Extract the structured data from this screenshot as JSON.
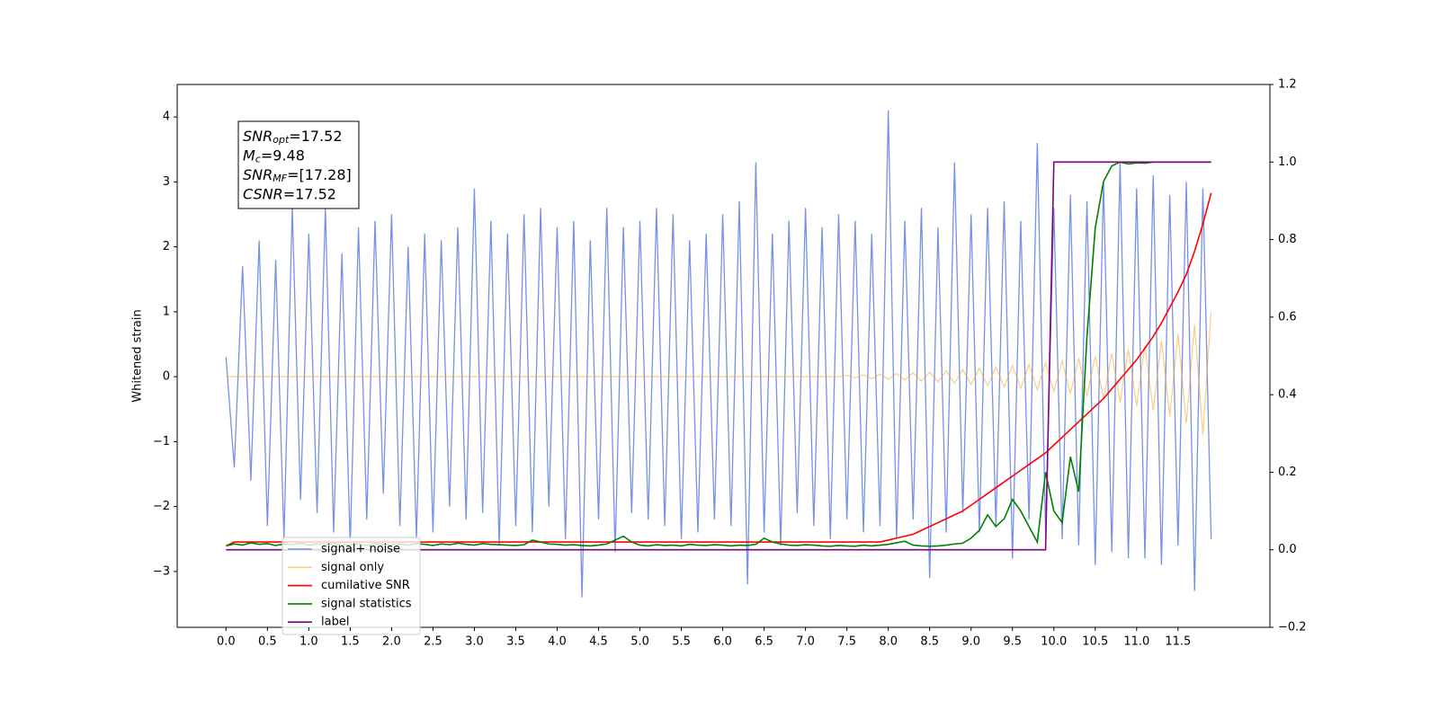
{
  "chart_data": {
    "type": "line",
    "ylabel": "Whitened strain",
    "annotations": [
      {
        "symbol": "SNR",
        "sub": "opt",
        "text": "=17.52"
      },
      {
        "symbol": "M",
        "sub": "c",
        "text": "=9.48"
      },
      {
        "symbol": "SNR",
        "sub": "MF",
        "text": "=[17.28]"
      },
      {
        "symbol": "CSNR",
        "text": "=17.52"
      }
    ],
    "legend": "lower left",
    "grid": false,
    "xlim": [
      -0.59,
      12.61
    ],
    "ylim": [
      -3.86,
      4.5
    ],
    "y2lim": [
      -0.2,
      1.2
    ],
    "xticks": [
      {
        "value": 0,
        "label": "0.0"
      },
      0.5,
      {
        "value": 1,
        "label": "1.0"
      },
      1.5,
      {
        "value": 2,
        "label": "2.0"
      },
      2.5,
      {
        "value": 3,
        "label": "3.0"
      },
      3.5,
      {
        "value": 4,
        "label": "4.0"
      },
      4.5,
      {
        "value": 5,
        "label": "5.0"
      },
      5.5,
      {
        "value": 6,
        "label": "6.0"
      },
      6.5,
      {
        "value": 7,
        "label": "7.0"
      },
      7.5,
      {
        "value": 8,
        "label": "8.0"
      },
      8.5,
      {
        "value": 9,
        "label": "9.0"
      },
      9.5,
      {
        "value": 10,
        "label": "10.0"
      },
      10.5,
      {
        "value": 11,
        "label": "11.0"
      },
      11.5
    ],
    "yticks": [
      {
        "value": -3,
        "label": "−3"
      },
      {
        "value": -2,
        "label": "−2"
      },
      {
        "value": -1,
        "label": "−1"
      },
      0,
      1,
      2,
      3,
      4
    ],
    "y2ticks": [
      {
        "value": -0.2,
        "label": "−0.2"
      },
      {
        "value": 0,
        "label": "0.0"
      },
      0.2,
      0.4,
      0.6,
      0.8,
      {
        "value": 1,
        "label": "1.0"
      },
      1.2
    ],
    "x": [
      0,
      0.1,
      0.2,
      0.3,
      0.4,
      0.5,
      0.6,
      0.7,
      0.8,
      0.9,
      1,
      1.1,
      1.2,
      1.3,
      1.4,
      1.5,
      1.6,
      1.7,
      1.8,
      1.9,
      2,
      2.1,
      2.2,
      2.3,
      2.4,
      2.5,
      2.6,
      2.7,
      2.8,
      2.9,
      3,
      3.1,
      3.2,
      3.3,
      3.4,
      3.5,
      3.6,
      3.7,
      3.8,
      3.9,
      4,
      4.1,
      4.2,
      4.3,
      4.4,
      4.5,
      4.6,
      4.7,
      4.8,
      4.9,
      5,
      5.1,
      5.2,
      5.3,
      5.4,
      5.5,
      5.6,
      5.7,
      5.8,
      5.9,
      6,
      6.1,
      6.2,
      6.3,
      6.4,
      6.5,
      6.6,
      6.7,
      6.8,
      6.9,
      7,
      7.1,
      7.2,
      7.3,
      7.4,
      7.5,
      7.6,
      7.7,
      7.8,
      7.9,
      8,
      8.1,
      8.2,
      8.3,
      8.4,
      8.5,
      8.6,
      8.7,
      8.8,
      8.9,
      9,
      9.1,
      9.2,
      9.3,
      9.4,
      9.5,
      9.6,
      9.7,
      9.8,
      9.9,
      10,
      10.1,
      10.2,
      10.3,
      10.4,
      10.5,
      10.6,
      10.7,
      10.8,
      10.9,
      11,
      11.1,
      11.2,
      11.3,
      11.4,
      11.5,
      11.6,
      11.7,
      11.8,
      11.9
    ],
    "series": [
      {
        "name": "signal+ noise",
        "color": "#6f8be6",
        "values": [
          0.3,
          -1.4,
          1.7,
          -1.6,
          2.1,
          -2.3,
          1.8,
          -2.5,
          2.6,
          -1.9,
          2.2,
          -2.1,
          2.6,
          -2.4,
          1.9,
          -2.6,
          2.3,
          -2.2,
          2.4,
          -1.8,
          2.5,
          -2.3,
          2.0,
          -2.5,
          2.2,
          -2.4,
          2.1,
          -2.0,
          2.3,
          -2.2,
          2.9,
          -2.1,
          2.4,
          -2.6,
          2.2,
          -2.3,
          2.5,
          -2.4,
          2.6,
          -2.0,
          2.3,
          -2.5,
          2.4,
          -3.4,
          2.1,
          -2.2,
          2.6,
          -2.7,
          2.3,
          -2.1,
          2.4,
          -2.2,
          2.6,
          -2.3,
          2.5,
          -2.5,
          2.1,
          -2.4,
          2.2,
          -2.2,
          2.5,
          -2.3,
          2.7,
          -3.2,
          3.3,
          -2.4,
          2.2,
          -2.6,
          2.4,
          -2.1,
          2.6,
          -2.3,
          2.3,
          -2.5,
          2.5,
          -2.2,
          2.4,
          -2.4,
          2.2,
          -2.3,
          4.1,
          -2.5,
          2.4,
          -2.2,
          2.6,
          -3.1,
          2.3,
          -2.4,
          3.3,
          -2.1,
          2.5,
          -2.4,
          2.6,
          -2.3,
          2.7,
          -2.8,
          2.4,
          -2.2,
          3.6,
          -2.4,
          2.6,
          -2.5,
          2.8,
          -2.6,
          2.7,
          -2.9,
          3.0,
          -2.7,
          3.3,
          -2.8,
          2.9,
          -2.8,
          3.1,
          -2.9,
          2.8,
          -2.6,
          3.0,
          -3.3,
          2.9,
          -2.5
        ]
      },
      {
        "name": "signal only",
        "color": "#f5a623",
        "values": [
          0,
          0,
          0,
          0,
          0,
          0,
          0,
          0,
          0,
          0,
          0,
          0,
          0,
          0,
          0,
          0,
          0,
          0,
          0,
          0,
          0,
          0,
          0,
          0,
          0,
          0,
          0,
          0,
          0,
          0,
          0,
          0,
          0,
          0,
          0,
          0,
          0,
          0,
          0,
          0,
          0,
          0,
          0,
          0,
          0,
          0,
          0,
          0,
          0,
          0,
          0,
          0,
          0,
          0,
          0,
          0,
          0,
          0,
          0,
          0,
          0,
          0,
          0,
          0,
          0,
          0,
          0,
          0,
          0,
          0,
          0,
          0,
          0,
          0,
          0,
          0.02,
          -0.02,
          0.03,
          -0.03,
          0.04,
          -0.04,
          0.05,
          -0.05,
          0.06,
          -0.07,
          0.07,
          -0.08,
          0.09,
          -0.1,
          0.11,
          -0.12,
          0.13,
          -0.14,
          0.15,
          -0.16,
          0.17,
          -0.18,
          0.19,
          -0.2,
          0.21,
          -0.23,
          0.24,
          -0.26,
          0.28,
          -0.3,
          0.32,
          -0.34,
          0.36,
          -0.39,
          0.42,
          -0.45,
          0.48,
          -0.52,
          0.56,
          -0.61,
          0.66,
          -0.72,
          0.8,
          -0.9,
          1.0
        ]
      },
      {
        "name": "cumilative SNR",
        "color": "#ff0000",
        "axis": "y2",
        "values": [
          0.01,
          0.02,
          0.02,
          0.02,
          0.02,
          0.02,
          0.02,
          0.02,
          0.02,
          0.02,
          0.02,
          0.02,
          0.02,
          0.02,
          0.02,
          0.02,
          0.02,
          0.02,
          0.02,
          0.02,
          0.02,
          0.02,
          0.02,
          0.02,
          0.02,
          0.02,
          0.02,
          0.02,
          0.02,
          0.02,
          0.02,
          0.02,
          0.02,
          0.02,
          0.02,
          0.02,
          0.02,
          0.02,
          0.02,
          0.02,
          0.02,
          0.02,
          0.02,
          0.02,
          0.02,
          0.02,
          0.02,
          0.02,
          0.02,
          0.02,
          0.02,
          0.02,
          0.02,
          0.02,
          0.02,
          0.02,
          0.02,
          0.02,
          0.02,
          0.02,
          0.02,
          0.02,
          0.02,
          0.02,
          0.02,
          0.02,
          0.02,
          0.02,
          0.02,
          0.02,
          0.02,
          0.02,
          0.02,
          0.02,
          0.02,
          0.02,
          0.02,
          0.02,
          0.02,
          0.02,
          0.025,
          0.03,
          0.035,
          0.04,
          0.05,
          0.06,
          0.07,
          0.08,
          0.09,
          0.1,
          0.115,
          0.13,
          0.145,
          0.16,
          0.175,
          0.19,
          0.205,
          0.22,
          0.235,
          0.25,
          0.27,
          0.29,
          0.31,
          0.33,
          0.35,
          0.37,
          0.39,
          0.415,
          0.44,
          0.465,
          0.49,
          0.52,
          0.55,
          0.585,
          0.625,
          0.665,
          0.71,
          0.77,
          0.84,
          0.92
        ]
      },
      {
        "name": "signal statistics",
        "color": "#008000",
        "axis": "y2",
        "values": [
          0.01,
          0.015,
          0.012,
          0.018,
          0.014,
          0.016,
          0.011,
          0.015,
          0.013,
          0.017,
          0.012,
          0.015,
          0.014,
          0.016,
          0.012,
          0.013,
          0.015,
          0.011,
          0.016,
          0.014,
          0.013,
          0.015,
          0.012,
          0.016,
          0.014,
          0.011,
          0.015,
          0.013,
          0.017,
          0.014,
          0.012,
          0.016,
          0.014,
          0.013,
          0.012,
          0.011,
          0.013,
          0.025,
          0.02,
          0.015,
          0.014,
          0.012,
          0.013,
          0.011,
          0.01,
          0.012,
          0.015,
          0.025,
          0.035,
          0.02,
          0.012,
          0.01,
          0.013,
          0.011,
          0.012,
          0.01,
          0.014,
          0.012,
          0.011,
          0.013,
          0.012,
          0.01,
          0.012,
          0.011,
          0.014,
          0.03,
          0.02,
          0.015,
          0.012,
          0.011,
          0.013,
          0.012,
          0.01,
          0.009,
          0.011,
          0.01,
          0.009,
          0.012,
          0.01,
          0.012,
          0.014,
          0.018,
          0.022,
          0.012,
          0.01,
          0.009,
          0.01,
          0.012,
          0.015,
          0.017,
          0.03,
          0.05,
          0.09,
          0.06,
          0.08,
          0.13,
          0.1,
          0.06,
          0.02,
          0.2,
          0.1,
          0.07,
          0.24,
          0.15,
          0.55,
          0.83,
          0.95,
          0.99,
          1.0,
          0.995,
          0.998,
          0.997,
          1.0,
          1.0,
          1.0,
          1.0,
          1.0,
          1.0,
          1.0,
          1.0
        ]
      },
      {
        "name": "label",
        "color": "#800080",
        "axis": "y2",
        "values": [
          0,
          0,
          0,
          0,
          0,
          0,
          0,
          0,
          0,
          0,
          0,
          0,
          0,
          0,
          0,
          0,
          0,
          0,
          0,
          0,
          0,
          0,
          0,
          0,
          0,
          0,
          0,
          0,
          0,
          0,
          0,
          0,
          0,
          0,
          0,
          0,
          0,
          0,
          0,
          0,
          0,
          0,
          0,
          0,
          0,
          0,
          0,
          0,
          0,
          0,
          0,
          0,
          0,
          0,
          0,
          0,
          0,
          0,
          0,
          0,
          0,
          0,
          0,
          0,
          0,
          0,
          0,
          0,
          0,
          0,
          0,
          0,
          0,
          0,
          0,
          0,
          0,
          0,
          0,
          0,
          0,
          0,
          0,
          0,
          0,
          0,
          0,
          0,
          0,
          0,
          0,
          0,
          0,
          0,
          0,
          0,
          0,
          0,
          0,
          0,
          1,
          1,
          1,
          1,
          1,
          1,
          1,
          1,
          1,
          1,
          1,
          1,
          1,
          1,
          1,
          1,
          1,
          1,
          1,
          1
        ]
      }
    ]
  }
}
